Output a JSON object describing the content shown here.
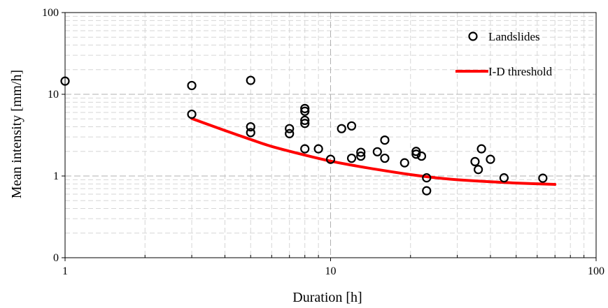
{
  "chart_data": {
    "type": "scatter",
    "xlabel": "Duration [h]",
    "ylabel": "Mean intensity [mm/h]",
    "x_scale": "log",
    "y_scale": "log",
    "xlim": [
      1,
      100
    ],
    "ylim": [
      0.1,
      100
    ],
    "x_ticks": [
      {
        "value": 1,
        "label": "1"
      },
      {
        "value": 10,
        "label": "10"
      },
      {
        "value": 100,
        "label": "100"
      }
    ],
    "y_ticks": [
      {
        "value": 0.1,
        "label": "0"
      },
      {
        "value": 1,
        "label": "1"
      },
      {
        "value": 10,
        "label": "10"
      },
      {
        "value": 100,
        "label": "100"
      }
    ],
    "grid": true,
    "legend_position": "top-right",
    "series": [
      {
        "name": "Landslides",
        "kind": "scatter",
        "marker": "open-circle",
        "color": "#000000",
        "points": [
          [
            1,
            14.5
          ],
          [
            3,
            12.8
          ],
          [
            3,
            5.7
          ],
          [
            5,
            14.8
          ],
          [
            5,
            4.0
          ],
          [
            5,
            3.4
          ],
          [
            7,
            3.8
          ],
          [
            7,
            3.3
          ],
          [
            8,
            6.7
          ],
          [
            8,
            6.2
          ],
          [
            8,
            4.8
          ],
          [
            8,
            4.4
          ],
          [
            8,
            2.15
          ],
          [
            9,
            2.15
          ],
          [
            10,
            1.6
          ],
          [
            11,
            3.8
          ],
          [
            12,
            4.1
          ],
          [
            12,
            1.65
          ],
          [
            13,
            1.95
          ],
          [
            13,
            1.75
          ],
          [
            15,
            1.98
          ],
          [
            16,
            2.75
          ],
          [
            16,
            1.65
          ],
          [
            19,
            1.45
          ],
          [
            21,
            2.0
          ],
          [
            21,
            1.85
          ],
          [
            22,
            1.75
          ],
          [
            23,
            0.95
          ],
          [
            23,
            0.66
          ],
          [
            35,
            1.5
          ],
          [
            36,
            1.2
          ],
          [
            37,
            2.15
          ],
          [
            40,
            1.6
          ],
          [
            45,
            0.95
          ],
          [
            63,
            0.94
          ]
        ]
      },
      {
        "name": "I-D threshold",
        "kind": "line",
        "color": "#ff0000",
        "points": [
          [
            3,
            5.05
          ],
          [
            4,
            3.6
          ],
          [
            5,
            2.8
          ],
          [
            6,
            2.3
          ],
          [
            8,
            1.8
          ],
          [
            10,
            1.52
          ],
          [
            12,
            1.36
          ],
          [
            15,
            1.2
          ],
          [
            20,
            1.04
          ],
          [
            25,
            0.95
          ],
          [
            30,
            0.9
          ],
          [
            40,
            0.85
          ],
          [
            50,
            0.82
          ],
          [
            70,
            0.79
          ]
        ]
      }
    ]
  }
}
